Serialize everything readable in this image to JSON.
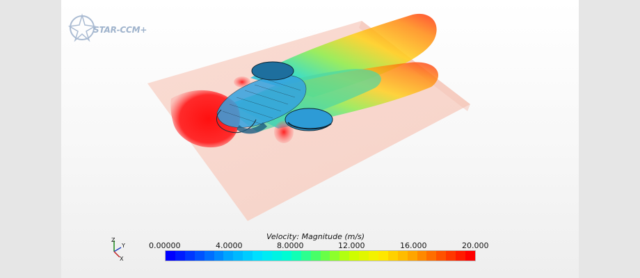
{
  "app": {
    "logo_text": "STAR-CCM+"
  },
  "legend": {
    "title": "Velocity: Magnitude (m/s)",
    "ticks": [
      "0.00000",
      "4.0000",
      "8.0000",
      "12.000",
      "16.000",
      "20.000"
    ],
    "min": 0,
    "max": 20,
    "colormap": [
      "#0000ff",
      "#0055ff",
      "#00aaff",
      "#00e5ff",
      "#00ffcc",
      "#55ff55",
      "#c8ff00",
      "#ffee00",
      "#ffaa00",
      "#ff5500",
      "#ff0000"
    ]
  },
  "axes_triad": {
    "y_label": "Y",
    "z_label": "Z",
    "x_label": "X"
  },
  "colors": {
    "ground_plane": "#f7d3c8",
    "background": "#ffffff"
  }
}
